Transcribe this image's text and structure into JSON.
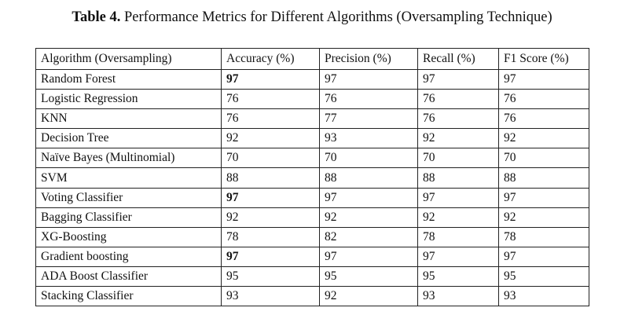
{
  "caption": {
    "label": "Table 4.",
    "text": "Performance Metrics for Different Algorithms (Oversampling Technique)"
  },
  "table": {
    "headers": [
      "Algorithm (Oversampling)",
      "Accuracy (%)",
      "Precision (%)",
      "Recall (%)",
      "F1 Score (%)"
    ],
    "rows": [
      {
        "algorithm": "Random Forest",
        "accuracy": "97",
        "precision": "97",
        "recall": "97",
        "f1": "97",
        "accuracy_bold": true
      },
      {
        "algorithm": "Logistic Regression",
        "accuracy": "76",
        "precision": "76",
        "recall": "76",
        "f1": "76",
        "accuracy_bold": false
      },
      {
        "algorithm": "KNN",
        "accuracy": "76",
        "precision": "77",
        "recall": "76",
        "f1": "76",
        "accuracy_bold": false
      },
      {
        "algorithm": "Decision Tree",
        "accuracy": "92",
        "precision": "93",
        "recall": "92",
        "f1": "92",
        "accuracy_bold": false
      },
      {
        "algorithm": "Naïve Bayes (Multinomial)",
        "accuracy": "70",
        "precision": "70",
        "recall": "70",
        "f1": "70",
        "accuracy_bold": false
      },
      {
        "algorithm": "SVM",
        "accuracy": "88",
        "precision": "88",
        "recall": "88",
        "f1": "88",
        "accuracy_bold": false
      },
      {
        "algorithm": "Voting Classifier",
        "accuracy": "97",
        "precision": "97",
        "recall": "97",
        "f1": "97",
        "accuracy_bold": true
      },
      {
        "algorithm": "Bagging Classifier",
        "accuracy": "92",
        "precision": "92",
        "recall": "92",
        "f1": "92",
        "accuracy_bold": false
      },
      {
        "algorithm": "XG-Boosting",
        "accuracy": "78",
        "precision": "82",
        "recall": "78",
        "f1": "78",
        "accuracy_bold": false
      },
      {
        "algorithm": "Gradient boosting",
        "accuracy": "97",
        "precision": "97",
        "recall": "97",
        "f1": "97",
        "accuracy_bold": true
      },
      {
        "algorithm": "ADA Boost Classifier",
        "accuracy": "95",
        "precision": "95",
        "recall": "95",
        "f1": "95",
        "accuracy_bold": false
      },
      {
        "algorithm": "Stacking Classifier",
        "accuracy": "93",
        "precision": "92",
        "recall": "93",
        "f1": "93",
        "accuracy_bold": false
      }
    ]
  }
}
